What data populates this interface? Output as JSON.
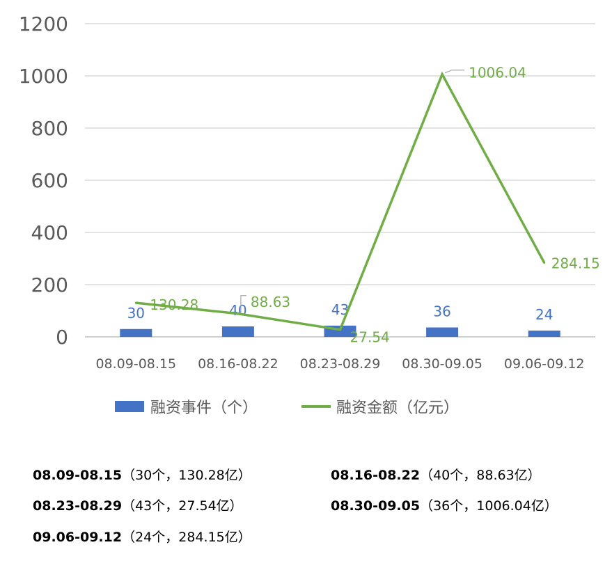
{
  "chart_data": {
    "type": "bar",
    "categories": [
      "08.09-08.15",
      "08.16-08.22",
      "08.23-08.29",
      "08.30-09.05",
      "09.06-09.12"
    ],
    "series": [
      {
        "name": "融资事件（个）",
        "type": "bar",
        "values": [
          30,
          40,
          43,
          36,
          24
        ],
        "labels": [
          "30",
          "40",
          "43",
          "36",
          "24"
        ],
        "color": "#4472c4"
      },
      {
        "name": "融资金额（亿元）",
        "type": "line",
        "values": [
          130.28,
          88.63,
          27.54,
          1006.04,
          284.15
        ],
        "labels": [
          "130.28",
          "88.63",
          "27.54",
          "1006.04",
          "284.15"
        ],
        "color": "#70ad47"
      }
    ],
    "yticks": [
      "0",
      "200",
      "400",
      "600",
      "800",
      "1000",
      "1200"
    ],
    "ylim": [
      0,
      1200
    ],
    "grid": true,
    "legend": "bottom"
  },
  "summary": [
    {
      "label": "08.09-08.15",
      "detail": "（30个，130.28亿）"
    },
    {
      "label": "08.16-08.22",
      "detail": "（40个，88.63亿）"
    },
    {
      "label": "08.23-08.29",
      "detail": "（43个，27.54亿）"
    },
    {
      "label": "08.30-09.05",
      "detail": "（36个，1006.04亿）"
    },
    {
      "label": "09.06-09.12",
      "detail": "（24个，284.15亿）"
    }
  ],
  "colors": {
    "bar": "#4472c4",
    "line": "#70ad47",
    "grid": "#d9d9d9",
    "text": "#595959"
  }
}
